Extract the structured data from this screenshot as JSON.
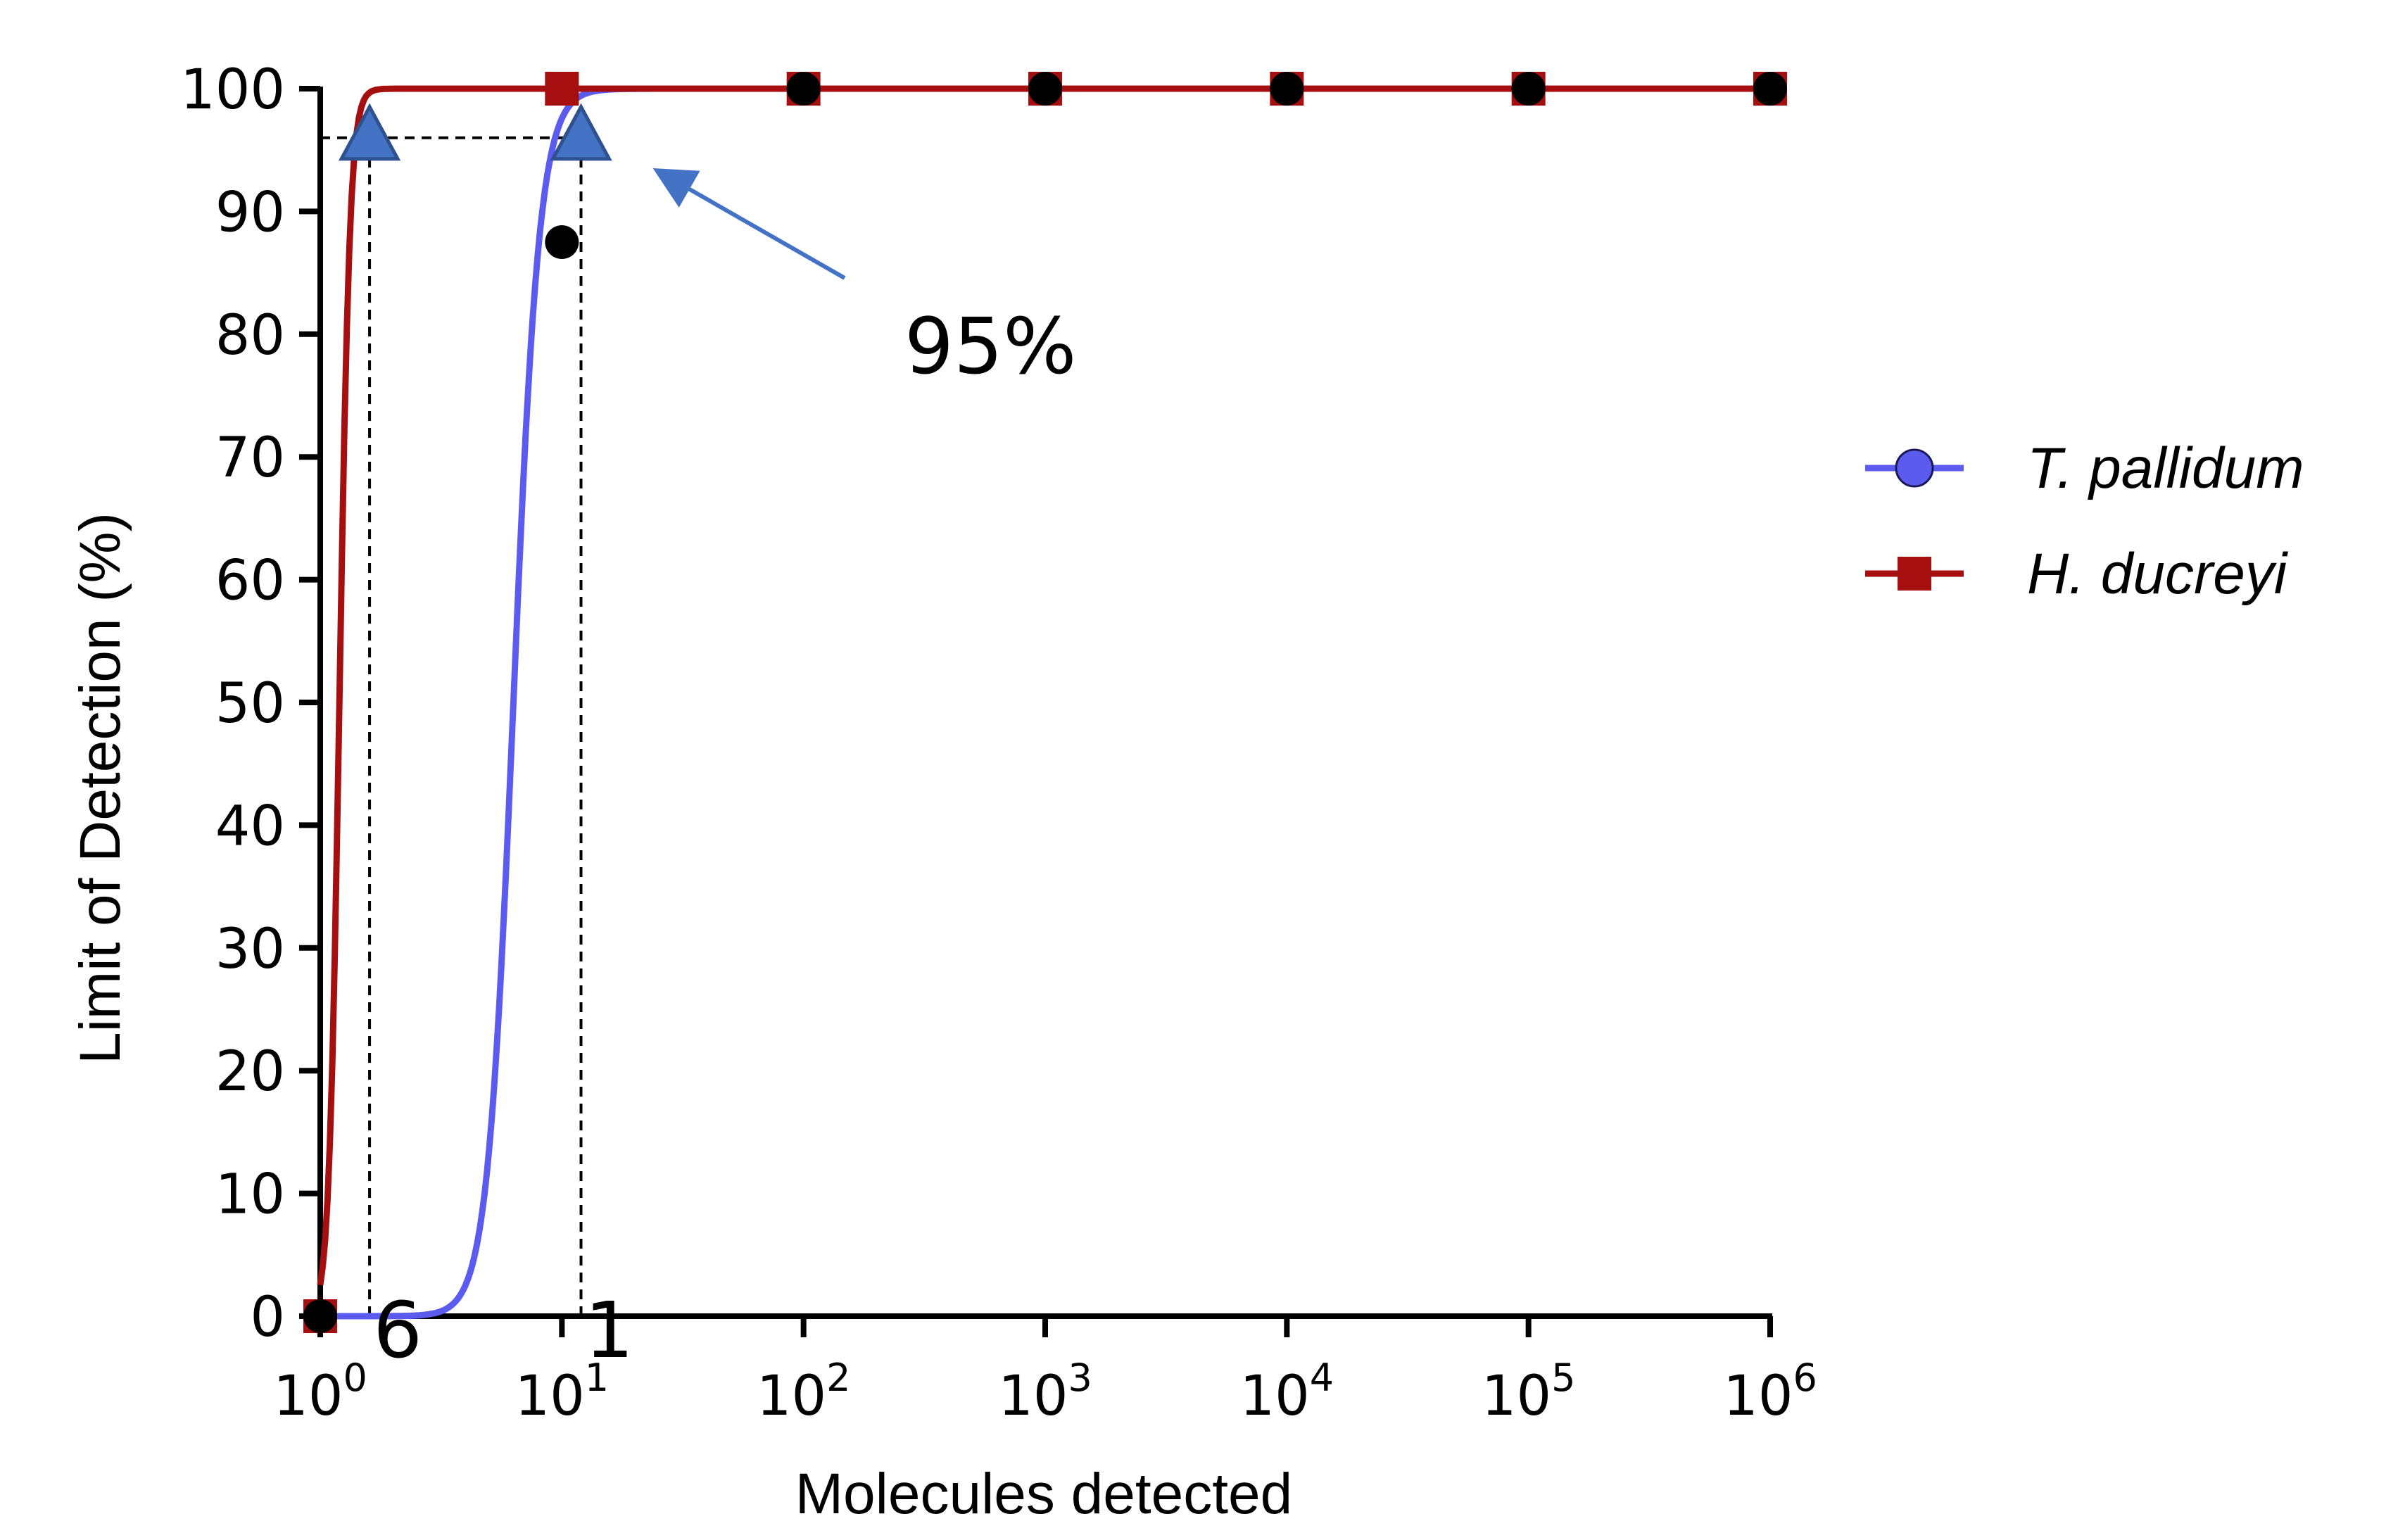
{
  "chart_data": {
    "type": "line",
    "title": "",
    "xlabel": "Molecules detected",
    "ylabel": "Limit of Detection (%)",
    "x_scale": "log",
    "xlim": [
      1,
      1000000
    ],
    "ylim": [
      0,
      100
    ],
    "y_ticks": [
      0,
      10,
      20,
      30,
      40,
      50,
      60,
      70,
      80,
      90,
      100
    ],
    "x_ticks": [
      {
        "value": 1,
        "base": "10",
        "exp": "0"
      },
      {
        "value": 10,
        "base": "10",
        "exp": "1"
      },
      {
        "value": 100,
        "base": "10",
        "exp": "2"
      },
      {
        "value": 1000,
        "base": "10",
        "exp": "3"
      },
      {
        "value": 10000,
        "base": "10",
        "exp": "4"
      },
      {
        "value": 100000,
        "base": "10",
        "exp": "5"
      },
      {
        "value": 1000000,
        "base": "10",
        "exp": "6"
      }
    ],
    "grid": false,
    "legend_position": "right",
    "series": [
      {
        "name": "T. pallidum",
        "color": "#5b5bf0",
        "marker": "circle",
        "fit_midpoint": 6.3,
        "fit_slope": 8.0,
        "points": [
          {
            "x": 1,
            "y": 0
          },
          {
            "x": 10,
            "y": 87.5
          },
          {
            "x": 100,
            "y": 100
          },
          {
            "x": 1000,
            "y": 100
          },
          {
            "x": 10000,
            "y": 100
          },
          {
            "x": 100000,
            "y": 100
          },
          {
            "x": 1000000,
            "y": 100
          }
        ]
      },
      {
        "name": "H. ducreyi",
        "color": "#a50f0f",
        "marker": "square",
        "fit_midpoint": 1.2,
        "fit_slope": 20.0,
        "points": [
          {
            "x": 1,
            "y": 0
          },
          {
            "x": 10,
            "y": 100
          },
          {
            "x": 100,
            "y": 100
          },
          {
            "x": 1000,
            "y": 100
          },
          {
            "x": 10000,
            "y": 100
          },
          {
            "x": 100000,
            "y": 100
          },
          {
            "x": 1000000,
            "y": 100
          }
        ]
      }
    ],
    "lod_points": [
      {
        "x": 1.6,
        "y": 96,
        "series": "H. ducreyi",
        "value_label": "6"
      },
      {
        "x": 12,
        "y": 96,
        "series": "T. pallidum",
        "value_label": "1"
      }
    ],
    "annotation": {
      "text": "95%",
      "arrow_color": "#4472c4",
      "marker_color": "#4472c4"
    }
  }
}
